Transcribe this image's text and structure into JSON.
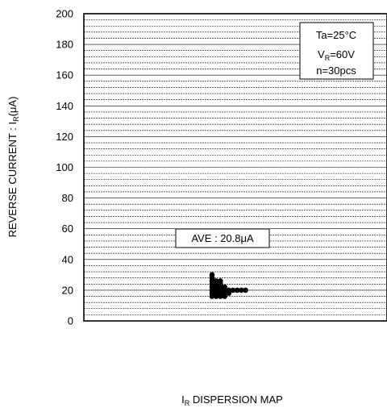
{
  "chart_data": {
    "type": "scatter",
    "title": "I_R DISPERSION MAP",
    "title_parts": {
      "main": "I",
      "sub": "R",
      "rest": " DISPERSION MAP"
    },
    "ylabel": "REVERSE CURRENT : I_R(μA)",
    "ylabel_parts": {
      "pre": "REVERSE CURRENT : I",
      "sub": "R",
      "post": "(μA)"
    },
    "xlabel": "",
    "ylim": [
      0,
      200
    ],
    "yticks": [
      0,
      20,
      40,
      60,
      80,
      100,
      120,
      140,
      160,
      180,
      200
    ],
    "minor_grid_step": 4,
    "grid": true,
    "conditions": {
      "line1": "Ta=25°C",
      "line2_pre": "V",
      "line2_sub": "R",
      "line2_post": "=60V",
      "line3": "n=30pcs"
    },
    "average_label": "AVE : 20.8μA",
    "average_value": 20.8,
    "points": [
      {
        "col": 0,
        "y": 16
      },
      {
        "col": 0,
        "y": 18
      },
      {
        "col": 0,
        "y": 20
      },
      {
        "col": 0,
        "y": 22
      },
      {
        "col": 0,
        "y": 24
      },
      {
        "col": 0,
        "y": 26
      },
      {
        "col": 0,
        "y": 28
      },
      {
        "col": 0,
        "y": 30
      },
      {
        "col": 1,
        "y": 16
      },
      {
        "col": 1,
        "y": 18
      },
      {
        "col": 1,
        "y": 20
      },
      {
        "col": 1,
        "y": 22
      },
      {
        "col": 1,
        "y": 24
      },
      {
        "col": 1,
        "y": 26
      },
      {
        "col": 2,
        "y": 16
      },
      {
        "col": 2,
        "y": 18
      },
      {
        "col": 2,
        "y": 20
      },
      {
        "col": 2,
        "y": 22
      },
      {
        "col": 2,
        "y": 24
      },
      {
        "col": 2,
        "y": 26
      },
      {
        "col": 3,
        "y": 16
      },
      {
        "col": 3,
        "y": 18
      },
      {
        "col": 3,
        "y": 20
      },
      {
        "col": 3,
        "y": 22
      },
      {
        "col": 4,
        "y": 18
      },
      {
        "col": 4,
        "y": 20
      },
      {
        "col": 5,
        "y": 20
      },
      {
        "col": 6,
        "y": 20
      },
      {
        "col": 7,
        "y": 20
      },
      {
        "col": 8,
        "y": 20
      }
    ]
  }
}
